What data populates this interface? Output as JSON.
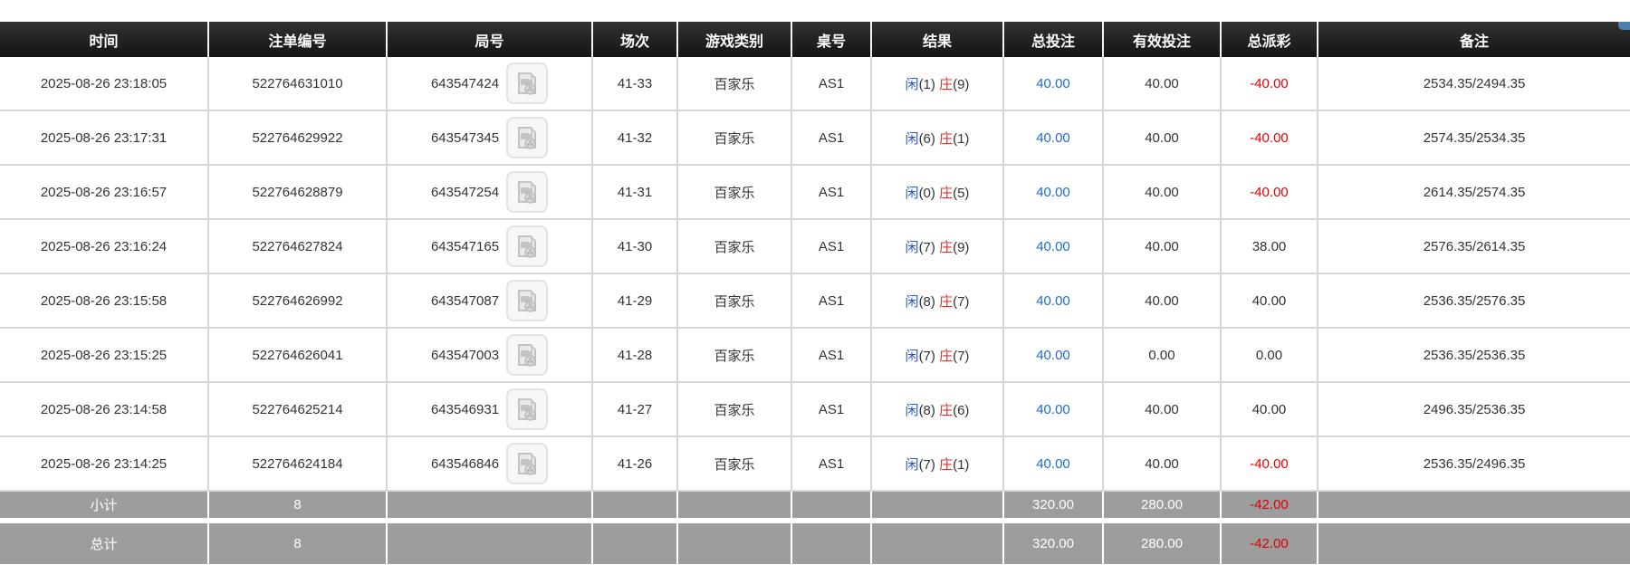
{
  "page": {
    "corner_accent_color": "#4a7fae"
  },
  "colors": {
    "header_bg": "#1d1d1d",
    "header_text": "#ffffff",
    "body_text": "#333333",
    "link_blue": "#1b6ad6",
    "player_blue": "#2857cc",
    "banker_red": "#d43030",
    "negative_red": "#e60000",
    "footer_bg": "#9d9d9d",
    "footer_negative_red": "#dd0000"
  },
  "table": {
    "columns": [
      {
        "key": "time",
        "label": "时间"
      },
      {
        "key": "bet_id",
        "label": "注单编号"
      },
      {
        "key": "round_id",
        "label": "局号"
      },
      {
        "key": "session",
        "label": "场次"
      },
      {
        "key": "game_type",
        "label": "游戏类别"
      },
      {
        "key": "table_no",
        "label": "桌号"
      },
      {
        "key": "result",
        "label": "结果"
      },
      {
        "key": "total_bet",
        "label": "总投注"
      },
      {
        "key": "valid_bet",
        "label": "有效投注"
      },
      {
        "key": "payout",
        "label": "总派彩"
      },
      {
        "key": "remark",
        "label": "备注"
      }
    ],
    "result_labels": {
      "player": "闲",
      "banker": "庄"
    },
    "video_icon": "video-replay-icon",
    "rows": [
      {
        "time": "2025-08-26 23:18:05",
        "bet_id": "522764631010",
        "round_id": "643547424",
        "session": "41-33",
        "game_type": "百家乐",
        "table_no": "AS1",
        "player_score": "(1)",
        "banker_score": "(9)",
        "total_bet": "40.00",
        "valid_bet": "40.00",
        "payout": "-40.00",
        "remark": "2534.35/2494.35"
      },
      {
        "time": "2025-08-26 23:17:31",
        "bet_id": "522764629922",
        "round_id": "643547345",
        "session": "41-32",
        "game_type": "百家乐",
        "table_no": "AS1",
        "player_score": "(6)",
        "banker_score": "(1)",
        "total_bet": "40.00",
        "valid_bet": "40.00",
        "payout": "-40.00",
        "remark": "2574.35/2534.35"
      },
      {
        "time": "2025-08-26 23:16:57",
        "bet_id": "522764628879",
        "round_id": "643547254",
        "session": "41-31",
        "game_type": "百家乐",
        "table_no": "AS1",
        "player_score": "(0)",
        "banker_score": "(5)",
        "total_bet": "40.00",
        "valid_bet": "40.00",
        "payout": "-40.00",
        "remark": "2614.35/2574.35"
      },
      {
        "time": "2025-08-26 23:16:24",
        "bet_id": "522764627824",
        "round_id": "643547165",
        "session": "41-30",
        "game_type": "百家乐",
        "table_no": "AS1",
        "player_score": "(7)",
        "banker_score": "(9)",
        "total_bet": "40.00",
        "valid_bet": "40.00",
        "payout": "38.00",
        "remark": "2576.35/2614.35"
      },
      {
        "time": "2025-08-26 23:15:58",
        "bet_id": "522764626992",
        "round_id": "643547087",
        "session": "41-29",
        "game_type": "百家乐",
        "table_no": "AS1",
        "player_score": "(8)",
        "banker_score": "(7)",
        "total_bet": "40.00",
        "valid_bet": "40.00",
        "payout": "40.00",
        "remark": "2536.35/2576.35"
      },
      {
        "time": "2025-08-26 23:15:25",
        "bet_id": "522764626041",
        "round_id": "643547003",
        "session": "41-28",
        "game_type": "百家乐",
        "table_no": "AS1",
        "player_score": "(7)",
        "banker_score": "(7)",
        "total_bet": "40.00",
        "valid_bet": "0.00",
        "payout": "0.00",
        "remark": "2536.35/2536.35"
      },
      {
        "time": "2025-08-26 23:14:58",
        "bet_id": "522764625214",
        "round_id": "643546931",
        "session": "41-27",
        "game_type": "百家乐",
        "table_no": "AS1",
        "player_score": "(8)",
        "banker_score": "(6)",
        "total_bet": "40.00",
        "valid_bet": "40.00",
        "payout": "40.00",
        "remark": "2496.35/2536.35"
      },
      {
        "time": "2025-08-26 23:14:25",
        "bet_id": "522764624184",
        "round_id": "643546846",
        "session": "41-26",
        "game_type": "百家乐",
        "table_no": "AS1",
        "player_score": "(7)",
        "banker_score": "(1)",
        "total_bet": "40.00",
        "valid_bet": "40.00",
        "payout": "-40.00",
        "remark": "2536.35/2496.35"
      }
    ],
    "footer": [
      {
        "name": "subtotal-row",
        "label": "小计",
        "count": "8",
        "total_bet": "320.00",
        "valid_bet": "280.00",
        "payout": "-42.00",
        "remark": ""
      },
      {
        "name": "total-row",
        "label": "总计",
        "count": "8",
        "total_bet": "320.00",
        "valid_bet": "280.00",
        "payout": "-42.00",
        "remark": ""
      }
    ]
  }
}
